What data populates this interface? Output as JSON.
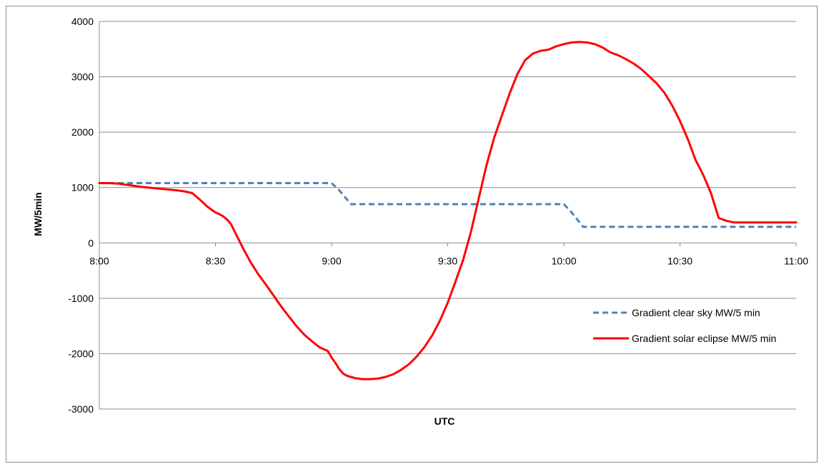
{
  "chart_data": {
    "type": "line",
    "xlabel": "UTC",
    "ylabel": "MW/5min",
    "xlim": [
      480,
      660
    ],
    "ylim": [
      -3000,
      4000
    ],
    "x_ticks": [
      {
        "value": 480,
        "label": "8:00"
      },
      {
        "value": 510,
        "label": "8:30"
      },
      {
        "value": 540,
        "label": "9:00"
      },
      {
        "value": 570,
        "label": "9:30"
      },
      {
        "value": 600,
        "label": "10:00"
      },
      {
        "value": 630,
        "label": "10:30"
      },
      {
        "value": 660,
        "label": "11:00"
      }
    ],
    "y_ticks": [
      {
        "value": 4000,
        "label": "4000"
      },
      {
        "value": 3000,
        "label": "3000"
      },
      {
        "value": 2000,
        "label": "2000"
      },
      {
        "value": 1000,
        "label": "1000"
      },
      {
        "value": 0,
        "label": "0"
      },
      {
        "value": -1000,
        "label": "-1000"
      },
      {
        "value": -2000,
        "label": "-2000"
      },
      {
        "value": -3000,
        "label": "-3000"
      }
    ],
    "grid": "horizontal",
    "legend_position": "right",
    "series": [
      {
        "name": "Gradient clear sky MW/5 min",
        "color": "#4f81bd",
        "dash": true,
        "x": [
          480,
          540,
          542,
          545,
          600,
          602,
          605,
          660
        ],
        "y": [
          1080,
          1080,
          950,
          700,
          700,
          550,
          290,
          290
        ]
      },
      {
        "name": "Gradient solar eclipse MW/5 min",
        "color": "#ff0000",
        "dash": false,
        "x": [
          480,
          482,
          485,
          488,
          491,
          494,
          497,
          500,
          502,
          504,
          506,
          508,
          510,
          511,
          512,
          513,
          514,
          515,
          516,
          517,
          519,
          521,
          523,
          525,
          527,
          529,
          531,
          533,
          535,
          537,
          539,
          540,
          541,
          542,
          543,
          544,
          546,
          548,
          550,
          552,
          554,
          556,
          558,
          560,
          562,
          564,
          566,
          568,
          570,
          572,
          574,
          576,
          578,
          580,
          582,
          584,
          586,
          588,
          590,
          592,
          594,
          596,
          598,
          600,
          602,
          604,
          606,
          608,
          610,
          612,
          614,
          616,
          618,
          620,
          622,
          624,
          626,
          628,
          630,
          632,
          634,
          636,
          638,
          640,
          642,
          644,
          646,
          648,
          650,
          652,
          654,
          656,
          658,
          660
        ],
        "y": [
          1080,
          1080,
          1070,
          1040,
          1010,
          990,
          970,
          950,
          930,
          900,
          780,
          650,
          550,
          520,
          480,
          420,
          340,
          200,
          60,
          -80,
          -340,
          -560,
          -750,
          -950,
          -1150,
          -1330,
          -1510,
          -1660,
          -1780,
          -1890,
          -1950,
          -2070,
          -2170,
          -2280,
          -2360,
          -2400,
          -2440,
          -2460,
          -2460,
          -2450,
          -2420,
          -2370,
          -2290,
          -2190,
          -2050,
          -1880,
          -1670,
          -1400,
          -1080,
          -700,
          -300,
          200,
          800,
          1400,
          1900,
          2300,
          2700,
          3050,
          3300,
          3420,
          3470,
          3490,
          3550,
          3590,
          3620,
          3630,
          3620,
          3590,
          3530,
          3440,
          3390,
          3320,
          3240,
          3140,
          3010,
          2880,
          2710,
          2480,
          2200,
          1880,
          1500,
          1230,
          900,
          450,
          400,
          370,
          370,
          370,
          370,
          370,
          370,
          370,
          370,
          370
        ]
      }
    ]
  }
}
